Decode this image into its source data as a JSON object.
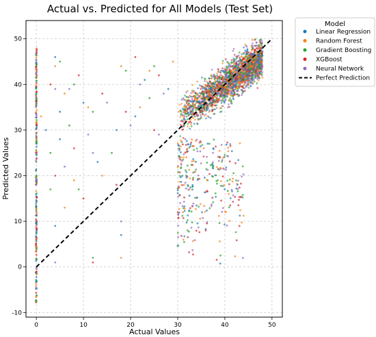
{
  "chart_data": {
    "type": "scatter",
    "title": "Actual vs. Predicted for All Models (Test Set)",
    "xlabel": "Actual Values",
    "ylabel": "Predicted Values",
    "xlim": [
      -2.2,
      52.2
    ],
    "ylim": [
      -11,
      54
    ],
    "xticks": [
      0,
      10,
      20,
      30,
      40,
      50
    ],
    "yticks": [
      -10,
      0,
      10,
      20,
      30,
      40,
      50
    ],
    "grid": true,
    "legend": {
      "title": "Model",
      "placement": "outside-top-right",
      "entries": [
        "Linear Regression",
        "Random Forest",
        "Gradient Boosting",
        "XGBoost",
        "Neural Network",
        "Perfect Prediction"
      ]
    },
    "series": [
      {
        "name": "Linear Regression",
        "color": "#1f77b4"
      },
      {
        "name": "Random Forest",
        "color": "#ff7f0e"
      },
      {
        "name": "Gradient Boosting",
        "color": "#2ca02c"
      },
      {
        "name": "XGBoost",
        "color": "#d62728"
      },
      {
        "name": "Neural Network",
        "color": "#9467bd"
      }
    ],
    "reference_line": {
      "name": "Perfect Prediction",
      "x": [
        0,
        50
      ],
      "y": [
        0,
        50
      ],
      "style": "dashed",
      "color": "#000000"
    },
    "data_regions": [
      {
        "description": "vertical band at actual 0",
        "x": [
          0,
          0
        ],
        "y": [
          -8,
          48
        ]
      },
      {
        "description": "dense cluster",
        "x": [
          30,
          48
        ],
        "y": [
          28,
          50
        ]
      },
      {
        "description": "sparse tail",
        "x": [
          30,
          44
        ],
        "y": [
          0,
          28
        ]
      },
      {
        "description": "scattered sparse points",
        "x": [
          2,
          28
        ],
        "y": [
          0,
          46
        ]
      }
    ],
    "sample_points": [
      [
        4,
        46
      ],
      [
        4,
        44
      ],
      [
        5,
        45
      ],
      [
        3,
        40
      ],
      [
        4,
        39
      ],
      [
        5,
        34
      ],
      [
        6,
        38
      ],
      [
        8,
        40
      ],
      [
        9,
        42
      ],
      [
        7,
        39
      ],
      [
        10,
        36
      ],
      [
        11,
        35
      ],
      [
        12,
        34
      ],
      [
        14,
        38
      ],
      [
        15,
        36
      ],
      [
        17,
        30
      ],
      [
        18,
        44
      ],
      [
        19,
        43
      ],
      [
        21,
        46
      ],
      [
        22,
        40
      ],
      [
        23,
        41
      ],
      [
        24,
        43
      ],
      [
        25,
        44
      ],
      [
        26,
        42
      ],
      [
        27,
        38
      ],
      [
        28,
        39
      ],
      [
        29,
        45
      ],
      [
        3,
        25
      ],
      [
        4,
        20
      ],
      [
        6,
        22
      ],
      [
        5,
        28
      ],
      [
        8,
        19
      ],
      [
        9,
        17
      ],
      [
        10,
        15
      ],
      [
        12,
        25
      ],
      [
        13,
        23
      ],
      [
        14,
        20
      ],
      [
        16,
        25
      ],
      [
        17,
        18
      ],
      [
        18,
        10
      ],
      [
        18,
        7
      ],
      [
        18,
        2
      ],
      [
        12,
        2
      ],
      [
        12,
        1
      ],
      [
        4,
        1
      ],
      [
        4,
        9
      ],
      [
        6,
        13
      ],
      [
        3,
        17
      ],
      [
        19,
        34
      ],
      [
        20,
        31
      ],
      [
        21,
        33
      ],
      [
        22,
        35
      ],
      [
        24,
        37
      ],
      [
        25,
        30
      ],
      [
        26,
        29
      ],
      [
        2,
        30
      ],
      [
        1,
        33
      ],
      [
        7,
        31
      ],
      [
        8,
        26
      ],
      [
        11,
        29
      ]
    ]
  }
}
